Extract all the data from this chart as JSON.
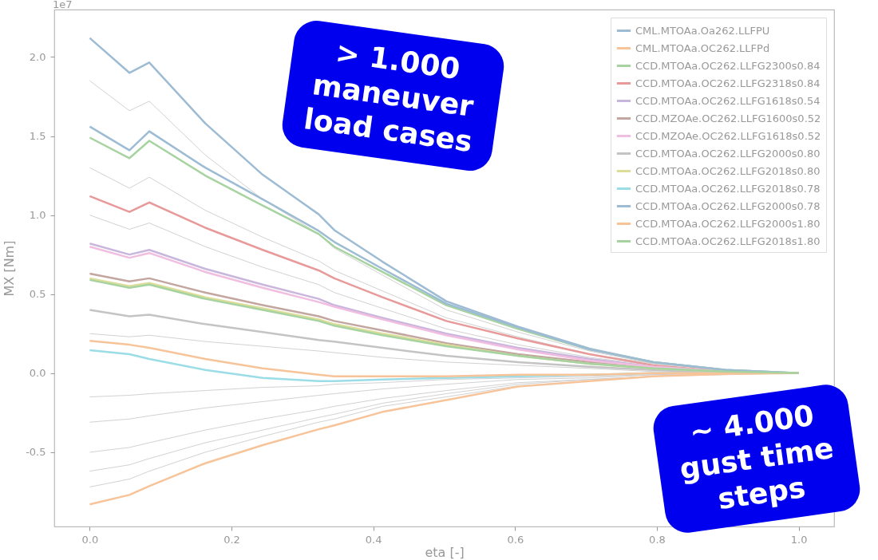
{
  "chart_data": {
    "type": "line",
    "xlabel": "eta [-]",
    "ylabel": "MX [Nm]",
    "x": [
      0,
      0.056,
      0.084,
      0.163,
      0.244,
      0.323,
      0.345,
      0.413,
      0.503,
      0.604,
      0.705,
      0.795,
      0.897,
      1.0
    ],
    "xlim": [
      -0.05,
      1.05
    ],
    "xticks": [
      {
        "value": 0,
        "label": "0.0"
      },
      0.2,
      0.4,
      0.6,
      0.8,
      {
        "value": 1,
        "label": "1.0"
      }
    ],
    "ylim": [
      -0.97,
      2.3
    ],
    "yticks": [
      -0.5,
      {
        "value": 0,
        "label": "0.0"
      },
      0.5,
      {
        "value": 1,
        "label": "1.0"
      },
      1.5,
      {
        "value": 2,
        "label": "2.0"
      }
    ],
    "grid": false,
    "legend": "top right",
    "marker": "none",
    "line_style": "solid",
    "annotations": [
      "1e7",
      "> 1.000\nmaneuver\nload cases",
      "~ 4.000\ngust time\nsteps"
    ],
    "series": [
      {
        "color": "#cccccc",
        "values": [
          1.85,
          1.66,
          1.72,
          1.38,
          1.1,
          0.88,
          0.79,
          0.62,
          0.4,
          0.26,
          0.14,
          0.06,
          0.02,
          0
        ]
      },
      {
        "color": "#cccccc",
        "values": [
          1.3,
          1.17,
          1.24,
          1.03,
          0.86,
          0.71,
          0.65,
          0.52,
          0.35,
          0.23,
          0.12,
          0.06,
          0.02,
          0
        ]
      },
      {
        "color": "#cccccc",
        "values": [
          1.0,
          0.91,
          0.95,
          0.8,
          0.67,
          0.56,
          0.51,
          0.41,
          0.28,
          0.18,
          0.1,
          0.05,
          0.01,
          0
        ]
      },
      {
        "color": "#cccccc",
        "values": [
          0.25,
          0.23,
          0.24,
          0.2,
          0.17,
          0.14,
          0.13,
          0.1,
          0.07,
          0.05,
          0.03,
          0.01,
          0,
          0
        ]
      },
      {
        "color": "#cccccc",
        "values": [
          -0.15,
          -0.14,
          -0.13,
          -0.11,
          -0.09,
          -0.08,
          -0.07,
          -0.06,
          -0.04,
          -0.03,
          -0.02,
          -0.01,
          0,
          0
        ]
      },
      {
        "color": "#cccccc",
        "values": [
          -0.31,
          -0.29,
          -0.27,
          -0.22,
          -0.18,
          -0.14,
          -0.13,
          -0.1,
          -0.07,
          -0.04,
          -0.03,
          -0.01,
          0,
          0
        ]
      },
      {
        "color": "#cccccc",
        "values": [
          -0.5,
          -0.47,
          -0.44,
          -0.36,
          -0.29,
          -0.23,
          -0.21,
          -0.16,
          -0.11,
          -0.06,
          -0.04,
          -0.02,
          0,
          0
        ]
      },
      {
        "color": "#cccccc",
        "values": [
          -0.62,
          -0.58,
          -0.54,
          -0.44,
          -0.36,
          -0.28,
          -0.26,
          -0.19,
          -0.13,
          -0.07,
          -0.04,
          -0.02,
          0,
          0
        ]
      },
      {
        "color": "#cccccc",
        "values": [
          -0.72,
          -0.67,
          -0.62,
          -0.5,
          -0.4,
          -0.31,
          -0.29,
          -0.21,
          -0.15,
          -0.08,
          -0.05,
          -0.02,
          -0.01,
          0
        ]
      },
      {
        "name": "CML.MTOAa.Oa262.LLFPU",
        "color": "#9dbcd4",
        "values": [
          2.12,
          1.9,
          1.965,
          1.58,
          1.255,
          1.005,
          0.905,
          0.705,
          0.455,
          0.295,
          0.155,
          0.07,
          0.02,
          0
        ]
      },
      {
        "name": "CML.MTOAa.OC262.LLFPd",
        "color": "#f7c49a",
        "values": [
          -0.83,
          -0.77,
          -0.715,
          -0.57,
          -0.455,
          -0.355,
          -0.33,
          -0.245,
          -0.17,
          -0.085,
          -0.05,
          -0.02,
          -0.005,
          0
        ]
      },
      {
        "name": "CCD.MTOAa.OC262.LLFG2300s0.84",
        "color": "#a6d3a0",
        "values": [
          1.49,
          1.36,
          1.47,
          1.25,
          1.06,
          0.88,
          0.8,
          0.64,
          0.43,
          0.28,
          0.15,
          0.07,
          0.02,
          0
        ]
      },
      {
        "name": "CCD.MTOAa.OC262.LLFG2318s0.84",
        "color": "#e89a9a",
        "values": [
          1.12,
          1.02,
          1.08,
          0.92,
          0.78,
          0.65,
          0.6,
          0.48,
          0.33,
          0.22,
          0.12,
          0.05,
          0.01,
          0
        ]
      },
      {
        "name": "CCD.MTOAa.OC262.LLFG1618s0.54",
        "color": "#c9b6dc",
        "values": [
          0.82,
          0.75,
          0.78,
          0.66,
          0.56,
          0.47,
          0.43,
          0.35,
          0.25,
          0.16,
          0.09,
          0.04,
          0.01,
          0
        ]
      },
      {
        "name": "CCD.MZOAe.OC262.LLFG1600s0.52",
        "color": "#c2a69f",
        "values": [
          0.63,
          0.58,
          0.6,
          0.51,
          0.43,
          0.36,
          0.33,
          0.27,
          0.19,
          0.12,
          0.07,
          0.03,
          0.01,
          0
        ]
      },
      {
        "name": "CCD.MZOAe.OC262.LLFG1618s0.52",
        "color": "#f1bde0",
        "values": [
          0.8,
          0.73,
          0.76,
          0.64,
          0.54,
          0.45,
          0.42,
          0.34,
          0.24,
          0.15,
          0.08,
          0.04,
          0.01,
          0
        ]
      },
      {
        "name": "CCD.MTOAa.OC262.LLFG2000s0.80",
        "color": "#c4c4c4",
        "values": [
          0.4,
          0.36,
          0.37,
          0.31,
          0.26,
          0.21,
          0.2,
          0.16,
          0.11,
          0.07,
          0.04,
          0.02,
          0,
          0
        ]
      },
      {
        "name": "CCD.MTOAa.OC262.LLFG2018s0.80",
        "color": "#dddd9a",
        "values": [
          0.6,
          0.55,
          0.57,
          0.48,
          0.41,
          0.34,
          0.31,
          0.25,
          0.18,
          0.11,
          0.06,
          0.03,
          0.01,
          0
        ]
      },
      {
        "name": "CCD.MTOAa.OC262.LLFG2018s0.78",
        "color": "#9bdde6",
        "values": [
          0.145,
          0.12,
          0.09,
          0.02,
          -0.03,
          -0.05,
          -0.05,
          -0.04,
          -0.03,
          -0.02,
          -0.01,
          0,
          0,
          0
        ]
      },
      {
        "name": "CCD.MTOAa.OC262.LLFG2000s0.78",
        "color": "#9dbcd4",
        "values": [
          1.56,
          1.41,
          1.53,
          1.3,
          1.1,
          0.9,
          0.83,
          0.66,
          0.44,
          0.29,
          0.15,
          0.07,
          0.02,
          0
        ]
      },
      {
        "name": "CCD.MTOAa.OC262.LLFG2000s1.80",
        "color": "#f7c49a",
        "values": [
          0.205,
          0.18,
          0.16,
          0.09,
          0.03,
          -0.01,
          -0.02,
          -0.02,
          -0.02,
          -0.01,
          -0.01,
          0,
          0,
          0
        ]
      },
      {
        "name": "CCD.MTOAa.OC262.LLFG2018s1.80",
        "color": "#a6d3a0",
        "values": [
          0.59,
          0.54,
          0.56,
          0.47,
          0.4,
          0.33,
          0.3,
          0.24,
          0.17,
          0.11,
          0.06,
          0.03,
          0.01,
          0
        ]
      }
    ]
  }
}
